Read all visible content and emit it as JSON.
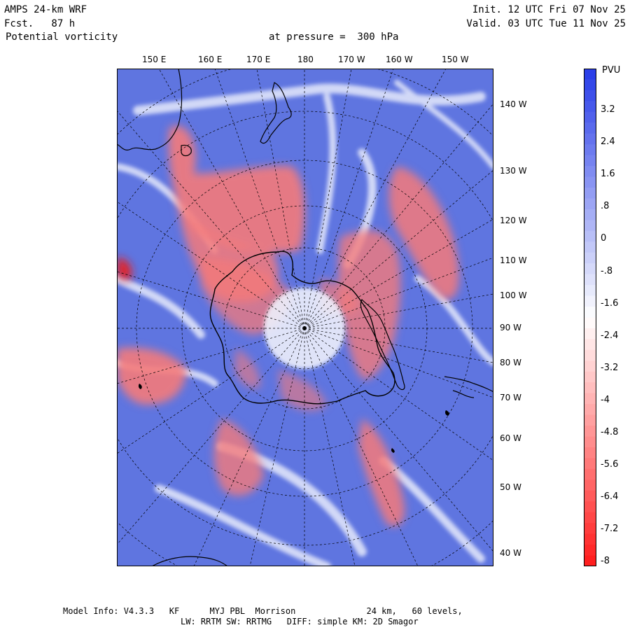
{
  "header": {
    "model": "AMPS 24-km WRF",
    "forecast": "Fcst.   87 h",
    "field": "Potential vorticity",
    "level": "at pressure =  300 hPa",
    "init": "Init. 12 UTC Fri 07 Nov 25",
    "valid": "Valid. 03 UTC Tue 11 Nov 25"
  },
  "colorbar": {
    "unit": "PVU",
    "ticks": [
      "3.2",
      "2.4",
      "1.6",
      ".8",
      "0",
      "-.8",
      "-1.6",
      "-2.4",
      "-3.2",
      "-4",
      "-4.8",
      "-5.6",
      "-6.4",
      "-7.2",
      "-8"
    ],
    "positive_color": "#2b3fe8",
    "negative_color": "#ff1f1f"
  },
  "map": {
    "top_longitudes": [
      "150 E",
      "160 E",
      "170 E",
      "180",
      "170 W",
      "160 W",
      "150 W"
    ],
    "right_longitudes": [
      "140 W",
      "130 W",
      "120 W",
      "110 W",
      "100 W",
      "90 W",
      "80 W",
      "70 W",
      "60 W",
      "50 W",
      "40 W"
    ],
    "background_color": "#5f75e0",
    "feature_color": "#f47a7a"
  },
  "footer": {
    "line1": "Model Info: V4.3.3   KF      MYJ PBL  Morrison              24 km,   60 levels,",
    "line2": "LW: RRTM SW: RRTMG   DIFF: simple KM: 2D Smagor"
  }
}
